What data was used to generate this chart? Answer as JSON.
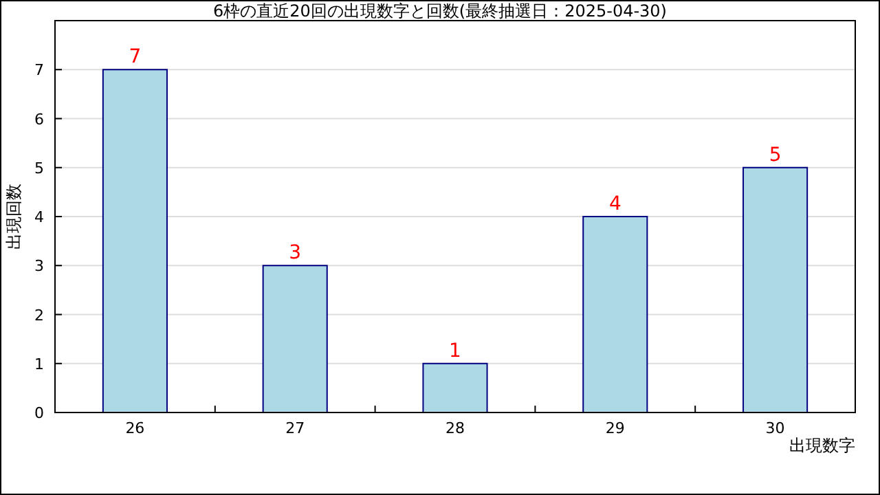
{
  "chart_data": {
    "type": "bar",
    "title": "6枠の直近20回の出現数字と回数(最終抽選日：2025-04-30)",
    "xlabel": "出現数字",
    "ylabel": "出現回数",
    "categories": [
      "26",
      "27",
      "28",
      "29",
      "30"
    ],
    "values": [
      7,
      3,
      1,
      4,
      5
    ],
    "color": "#add8e6",
    "ylim": [
      0,
      8
    ],
    "yticks": [
      0,
      1,
      2,
      3,
      4,
      5,
      6,
      7,
      {
        "value": 8,
        "label": null
      }
    ],
    "grid": "y",
    "data_labels": true
  }
}
